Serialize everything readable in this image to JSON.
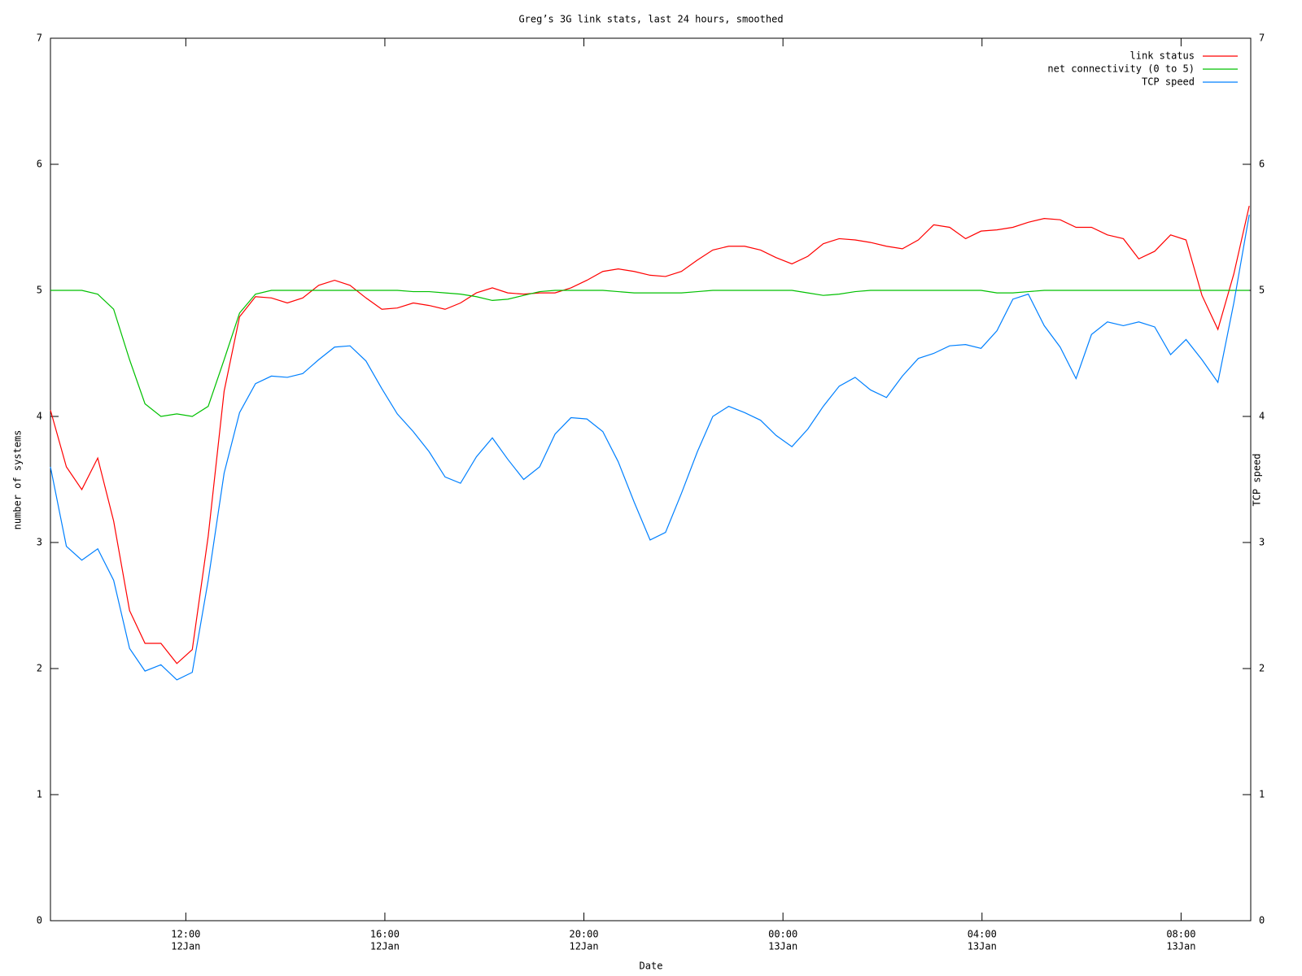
{
  "chart_data": {
    "type": "line",
    "title": "Greg’s 3G link stats, last 24 hours, smoothed",
    "xlabel": "Date",
    "ylabel": "number of systems",
    "y2label": "TCP speed",
    "x": [
      9.28,
      9.6,
      9.91,
      10.23,
      10.55,
      10.87,
      11.18,
      11.5,
      11.82,
      12.13,
      12.45,
      12.77,
      13.08,
      13.4,
      13.72,
      14.04,
      14.35,
      14.67,
      14.99,
      15.3,
      15.62,
      15.94,
      16.25,
      16.57,
      16.89,
      17.21,
      17.52,
      17.84,
      18.16,
      18.47,
      18.79,
      19.11,
      19.42,
      19.74,
      20.06,
      20.38,
      20.69,
      21.01,
      21.33,
      21.64,
      21.96,
      22.28,
      22.59,
      22.91,
      23.23,
      23.55,
      23.86,
      24.18,
      24.5,
      24.81,
      25.13,
      25.45,
      25.76,
      26.08,
      26.4,
      26.72,
      27.03,
      27.35,
      27.67,
      27.98,
      28.3,
      28.62,
      28.93,
      29.25,
      29.57,
      29.89,
      30.2,
      30.52,
      30.84,
      31.15,
      31.47,
      31.79,
      32.1,
      32.42,
      32.74,
      33.06,
      33.37
    ],
    "series": [
      {
        "name": "link status",
        "color": "#ff0000",
        "values": [
          4.05,
          3.6,
          3.42,
          3.67,
          3.17,
          2.46,
          2.2,
          2.2,
          2.04,
          2.15,
          3.05,
          4.2,
          4.79,
          4.95,
          4.94,
          4.9,
          4.94,
          5.04,
          5.08,
          5.04,
          4.94,
          4.85,
          4.86,
          4.9,
          4.88,
          4.85,
          4.9,
          4.98,
          5.02,
          4.98,
          4.97,
          4.98,
          4.98,
          5.02,
          5.08,
          5.15,
          5.17,
          5.15,
          5.12,
          5.11,
          5.15,
          5.24,
          5.32,
          5.35,
          5.35,
          5.32,
          5.26,
          5.21,
          5.27,
          5.37,
          5.41,
          5.4,
          5.38,
          5.35,
          5.33,
          5.4,
          5.52,
          5.5,
          5.41,
          5.47,
          5.48,
          5.5,
          5.54,
          5.57,
          5.56,
          5.5,
          5.5,
          5.44,
          5.41,
          5.25,
          5.31,
          5.44,
          5.4,
          4.96,
          4.69,
          5.13,
          5.67
        ]
      },
      {
        "name": "net connectivity (0 to 5)",
        "color": "#00c000",
        "values": [
          5,
          5,
          5,
          4.97,
          4.85,
          4.45,
          4.1,
          4.0,
          4.02,
          4.0,
          4.08,
          4.45,
          4.82,
          4.97,
          5,
          5,
          5,
          5,
          5,
          5,
          5,
          5,
          5,
          4.99,
          4.99,
          4.98,
          4.97,
          4.95,
          4.92,
          4.93,
          4.96,
          4.99,
          5,
          5,
          5,
          5,
          4.99,
          4.98,
          4.98,
          4.98,
          4.98,
          4.99,
          5,
          5,
          5,
          5,
          5,
          5,
          4.98,
          4.96,
          4.97,
          4.99,
          5,
          5,
          5,
          5,
          5,
          5,
          5,
          5,
          4.98,
          4.98,
          4.99,
          5,
          5,
          5,
          5,
          5,
          5,
          5,
          5,
          5,
          5,
          5,
          5,
          5,
          5
        ]
      },
      {
        "name": "TCP speed",
        "color": "#0080ff",
        "axis": "y2",
        "values": [
          3.6,
          2.97,
          2.86,
          2.95,
          2.7,
          2.16,
          1.98,
          2.03,
          1.91,
          1.97,
          2.7,
          3.55,
          4.03,
          4.26,
          4.32,
          4.31,
          4.34,
          4.45,
          4.55,
          4.56,
          4.44,
          4.22,
          4.02,
          3.88,
          3.72,
          3.52,
          3.47,
          3.68,
          3.83,
          3.66,
          3.5,
          3.6,
          3.86,
          3.99,
          3.98,
          3.88,
          3.64,
          3.32,
          3.02,
          3.08,
          3.39,
          3.72,
          4.0,
          4.08,
          4.03,
          3.97,
          3.85,
          3.76,
          3.9,
          4.08,
          4.24,
          4.31,
          4.21,
          4.15,
          4.32,
          4.46,
          4.5,
          4.56,
          4.57,
          4.54,
          4.68,
          4.93,
          4.97,
          4.72,
          4.55,
          4.3,
          4.65,
          4.75,
          4.72,
          4.75,
          4.71,
          4.49,
          4.61,
          4.45,
          4.27,
          4.9,
          5.6
        ]
      }
    ],
    "xlim": [
      9.28,
      33.4
    ],
    "xticks": [
      {
        "value": 12,
        "label": [
          "12:00",
          "12Jan"
        ]
      },
      {
        "value": 16,
        "label": [
          "16:00",
          "12Jan"
        ]
      },
      {
        "value": 20,
        "label": [
          "20:00",
          "12Jan"
        ]
      },
      {
        "value": 24,
        "label": [
          "00:00",
          "13Jan"
        ]
      },
      {
        "value": 28,
        "label": [
          "04:00",
          "13Jan"
        ]
      },
      {
        "value": 32,
        "label": [
          "08:00",
          "13Jan"
        ]
      }
    ],
    "ylim": [
      0,
      7
    ],
    "yticks": [
      0,
      1,
      2,
      3,
      4,
      5,
      6,
      7
    ],
    "y2lim": [
      0,
      7
    ],
    "y2ticks": [
      0,
      1,
      2,
      3,
      4,
      5,
      6,
      7
    ],
    "legend": "top-right"
  }
}
